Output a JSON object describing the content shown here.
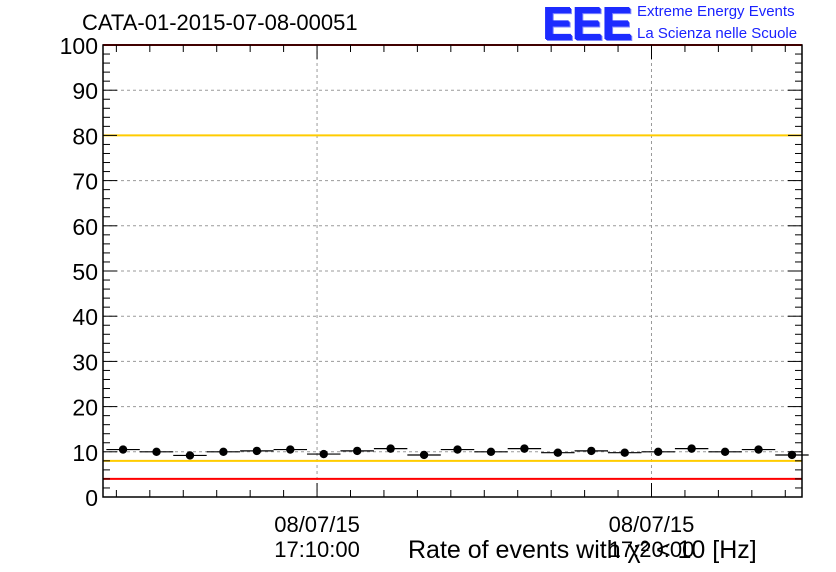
{
  "chart_data": {
    "type": "scatter",
    "title": "CATA-01-2015-07-08-00051",
    "xlabel": "Rate of events with χ² < 10 [Hz]",
    "ylabel": "",
    "ylim": [
      0,
      100
    ],
    "yticks": [
      "0",
      "10",
      "20",
      "30",
      "40",
      "50",
      "60",
      "70",
      "80",
      "90",
      "100"
    ],
    "xticks": [
      {
        "date": "08/07/15",
        "time": "17:10:00",
        "minute": 10
      },
      {
        "date": "08/07/15",
        "time": "17:20:00",
        "minute": 20
      }
    ],
    "xlim_minutes": [
      3.6,
      24.5
    ],
    "grid": true,
    "series": [
      {
        "x_minutes": [
          4.2,
          5.2,
          6.2,
          7.2,
          8.2,
          9.2,
          10.2,
          11.2,
          12.2,
          13.2,
          14.2,
          15.2,
          16.2,
          17.2,
          18.2,
          19.2,
          20.2,
          21.2,
          22.2,
          23.2,
          24.2
        ],
        "values": [
          10.5,
          10.0,
          9.2,
          10.0,
          10.2,
          10.5,
          9.5,
          10.2,
          10.7,
          9.3,
          10.5,
          10.0,
          10.7,
          9.8,
          10.2,
          9.8,
          10.0,
          10.7,
          10.0,
          10.5,
          9.3
        ]
      }
    ],
    "reference_lines": [
      {
        "value": 100,
        "color": "#ff0000"
      },
      {
        "value": 80,
        "color": "#ffcc00"
      },
      {
        "value": 8,
        "color": "#ffcc00"
      },
      {
        "value": 4,
        "color": "#ff0000"
      }
    ]
  },
  "logo": {
    "mark": "EEE",
    "line1": "Extreme Energy Events",
    "line2": "La Scienza nelle Scuole"
  }
}
